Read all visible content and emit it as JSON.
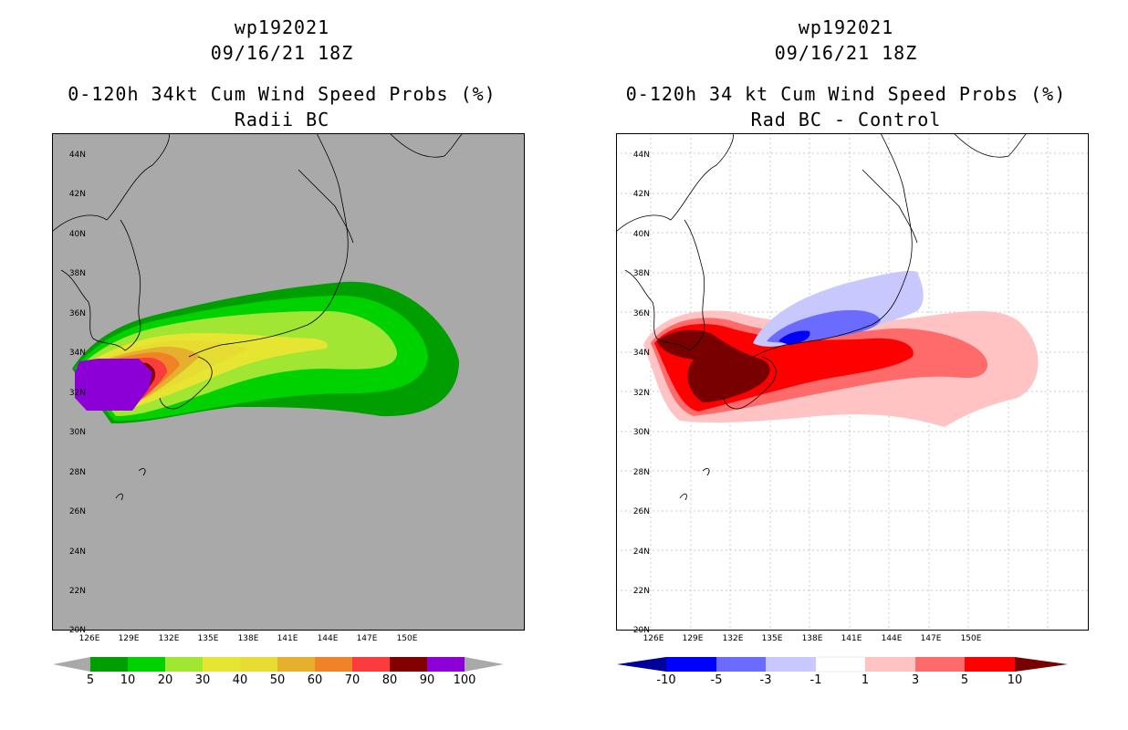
{
  "colors": {
    "bg_gray": "#a9a9a9",
    "prob": [
      "#009e00",
      "#00d200",
      "#a0e632",
      "#e6e632",
      "#e6dc32",
      "#e6af2d",
      "#f08228",
      "#fa3c3c",
      "#820000",
      "#8c00d7"
    ],
    "diff": [
      "#00009b",
      "#0000ff",
      "#6b6bff",
      "#c8c8ff",
      "#ffffff",
      "#ffc3c3",
      "#ff6b6b",
      "#ff0000",
      "#780000"
    ]
  },
  "left_panel": {
    "title_line1": "wp192021",
    "title_line2": "09/16/21 18Z",
    "title_line3": "0-120h 34kt Cum Wind Speed Probs (%)",
    "title_line4": "Radii BC",
    "colorbar_labels": [
      "5",
      "10",
      "20",
      "30",
      "40",
      "50",
      "60",
      "70",
      "80",
      "90",
      "100"
    ]
  },
  "right_panel": {
    "title_line1": "wp192021",
    "title_line2": "09/16/21 18Z",
    "title_line3": "0-120h 34 kt Cum Wind Speed Probs (%)",
    "title_line4": "Rad BC - Control",
    "colorbar_labels": [
      "-10",
      "-5",
      "-3",
      "-1",
      "1",
      "3",
      "5",
      "10"
    ]
  },
  "axes": {
    "lat_labels": [
      "44N",
      "42N",
      "40N",
      "38N",
      "36N",
      "34N",
      "32N",
      "30N",
      "28N",
      "26N",
      "24N",
      "22N",
      "20N"
    ],
    "lon_labels": [
      "126E",
      "129E",
      "132E",
      "135E",
      "138E",
      "141E",
      "144E",
      "147E",
      "150E"
    ]
  }
}
